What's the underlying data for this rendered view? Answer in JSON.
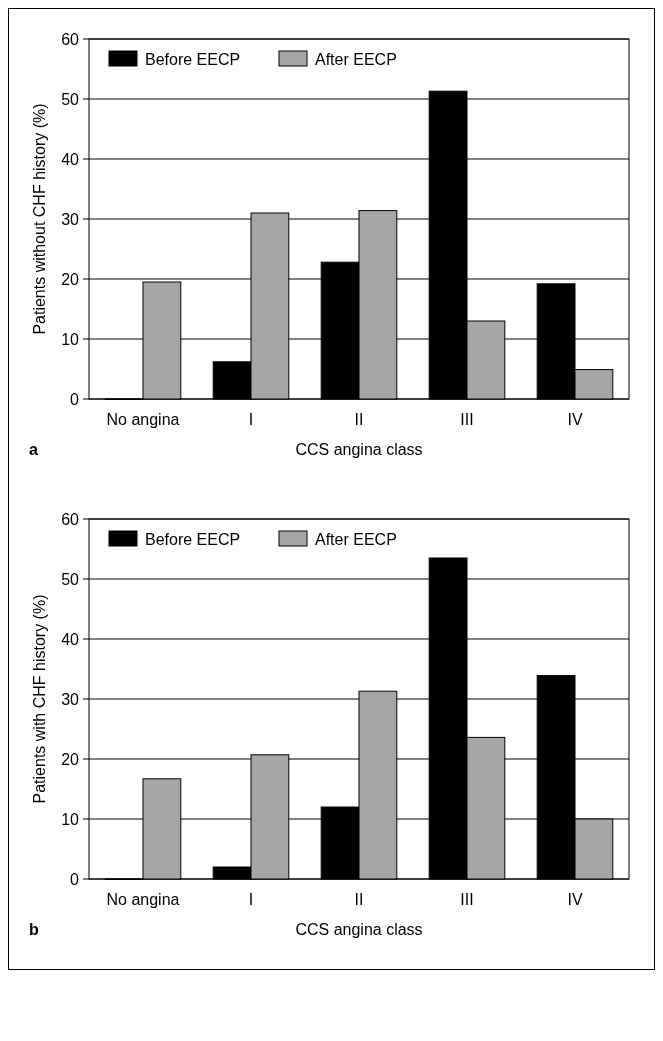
{
  "chart_data": [
    {
      "type": "bar",
      "categories": [
        "No angina",
        "I",
        "II",
        "III",
        "IV"
      ],
      "xlabel": "CCS angina class",
      "ylabel": "Patients without CHF history (%)",
      "annotations": [
        "a"
      ],
      "ylim": [
        0,
        60
      ],
      "yticks": [
        0,
        10,
        20,
        30,
        40,
        50,
        60
      ],
      "grid": "y",
      "legend": "top left",
      "series": [
        {
          "name": "Before EECP",
          "color": "#000000",
          "values": [
            0,
            6.2,
            22.8,
            51.3,
            19.2
          ]
        },
        {
          "name": "After EECP",
          "color": "#a6a6a6",
          "values": [
            19.5,
            31.0,
            31.4,
            13.0,
            4.9
          ]
        }
      ]
    },
    {
      "type": "bar",
      "categories": [
        "No angina",
        "I",
        "II",
        "III",
        "IV"
      ],
      "xlabel": "CCS angina class",
      "ylabel": "Patients with CHF history (%)",
      "annotations": [
        "b"
      ],
      "ylim": [
        0,
        60
      ],
      "yticks": [
        0,
        10,
        20,
        30,
        40,
        50,
        60
      ],
      "grid": "y",
      "legend": "top left",
      "series": [
        {
          "name": "Before EECP",
          "color": "#000000",
          "values": [
            0,
            2.0,
            12.0,
            53.5,
            33.9
          ]
        },
        {
          "name": "After EECP",
          "color": "#a6a6a6",
          "values": [
            16.7,
            20.7,
            31.3,
            23.6,
            10.0
          ]
        }
      ]
    }
  ]
}
